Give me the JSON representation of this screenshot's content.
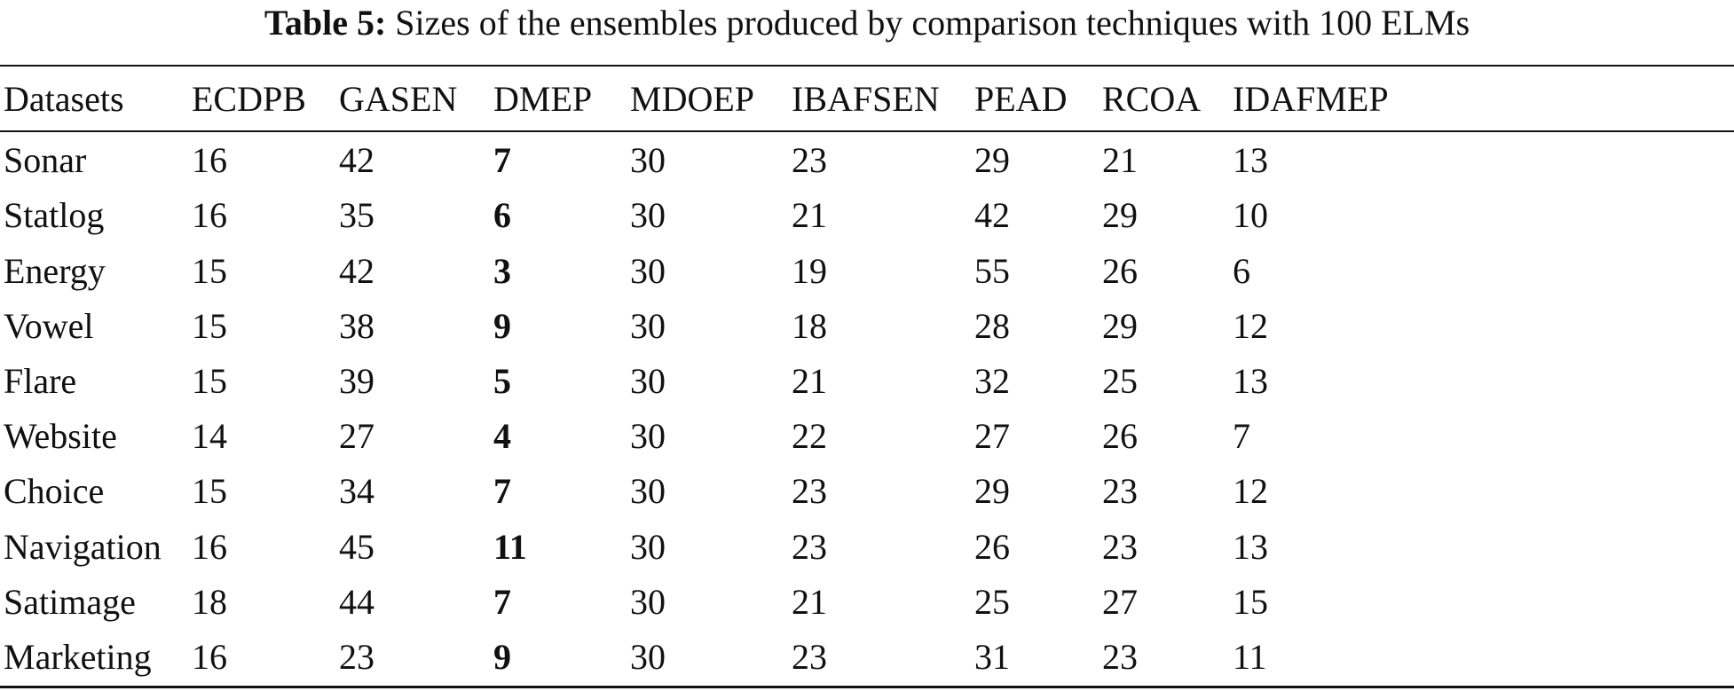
{
  "caption": {
    "label": "Table 5:",
    "text": "Sizes of the ensembles produced by comparison techniques with 100 ELMs"
  },
  "table": {
    "headers": [
      "Datasets",
      "ECDPB",
      "GASEN",
      "DMEP",
      "MDOEP",
      "IBAFSEN",
      "PEAD",
      "RCOA",
      "IDAFMEP"
    ],
    "rows": [
      [
        "Sonar",
        "16",
        "42",
        "7",
        "30",
        "23",
        "29",
        "21",
        "13"
      ],
      [
        "Statlog",
        "16",
        "35",
        "6",
        "30",
        "21",
        "42",
        "29",
        "10"
      ],
      [
        "Energy",
        "15",
        "42",
        "3",
        "30",
        "19",
        "55",
        "26",
        "6"
      ],
      [
        "Vowel",
        "15",
        "38",
        "9",
        "30",
        "18",
        "28",
        "29",
        "12"
      ],
      [
        "Flare",
        "15",
        "39",
        "5",
        "30",
        "21",
        "32",
        "25",
        "13"
      ],
      [
        "Website",
        "14",
        "27",
        "4",
        "30",
        "22",
        "27",
        "26",
        "7"
      ],
      [
        "Choice",
        "15",
        "34",
        "7",
        "30",
        "23",
        "29",
        "23",
        "12"
      ],
      [
        "Navigation",
        "16",
        "45",
        "11",
        "30",
        "23",
        "26",
        "23",
        "13"
      ],
      [
        "Satimage",
        "18",
        "44",
        "7",
        "30",
        "21",
        "25",
        "27",
        "15"
      ],
      [
        "Marketing",
        "16",
        "23",
        "9",
        "30",
        "23",
        "31",
        "23",
        "11"
      ]
    ],
    "bold_column": "DMEP"
  }
}
